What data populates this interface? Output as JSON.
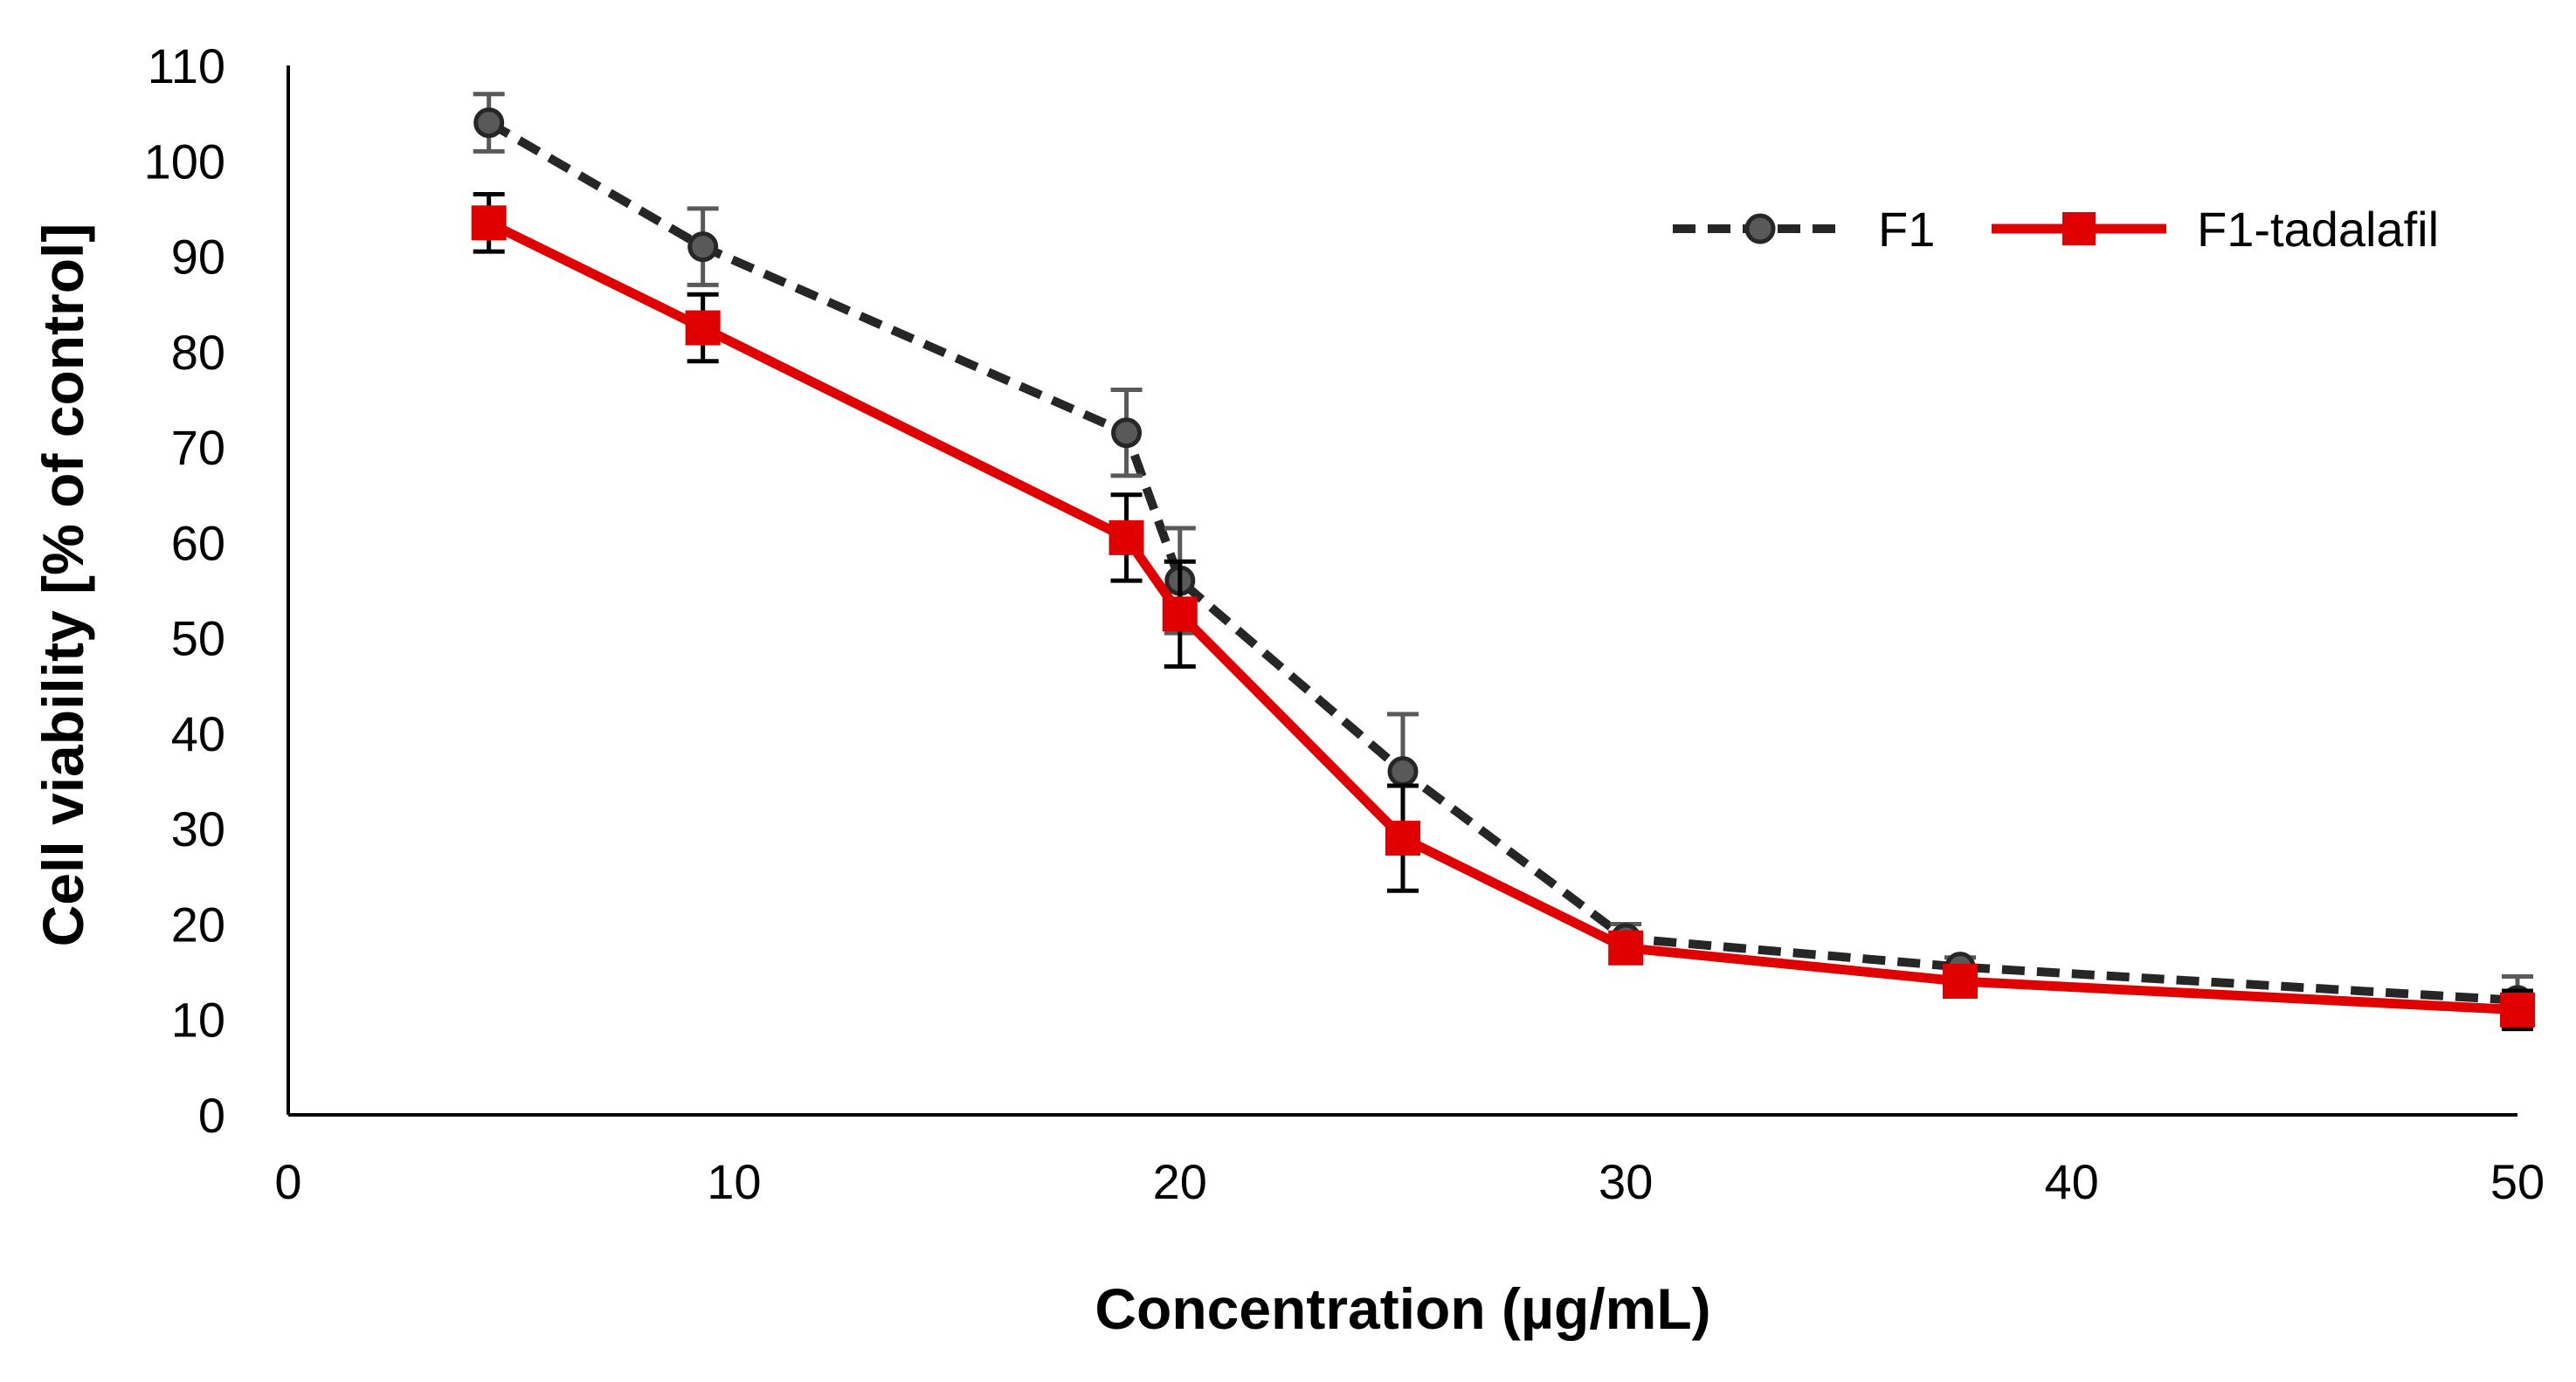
{
  "chart_data": {
    "type": "line",
    "title": "",
    "xlabel": "Concentration (µg/mL)",
    "ylabel": "Cell viability [% of control]",
    "xlim": [
      0,
      50
    ],
    "ylim": [
      0,
      110
    ],
    "xticks": [
      0,
      10,
      20,
      30,
      40,
      50
    ],
    "yticks": [
      0,
      10,
      20,
      30,
      40,
      50,
      60,
      70,
      80,
      90,
      100,
      110
    ],
    "grid": false,
    "legend_position": "top-right",
    "series": [
      {
        "name": "F1",
        "color": "#262626",
        "error_color": "#595959",
        "line_style": "dashed",
        "marker": "circle",
        "x": [
          4.5,
          9.3,
          18.8,
          20,
          25,
          30,
          37.5,
          50
        ],
        "y": [
          104,
          91,
          71.5,
          56,
          36,
          18.5,
          15.5,
          12
        ],
        "error": [
          3,
          4,
          4.5,
          5.5,
          6,
          1.5,
          1,
          2.5
        ]
      },
      {
        "name": "F1-tadalafil",
        "color": "#e00000",
        "error_color": "#000000",
        "line_style": "solid",
        "marker": "square",
        "x": [
          4.5,
          9.3,
          18.8,
          20,
          25,
          30,
          37.5,
          50
        ],
        "y": [
          93.5,
          82.5,
          60.5,
          52.5,
          29,
          17.5,
          14,
          11
        ],
        "error": [
          3,
          3.5,
          4.5,
          5.5,
          5.5,
          1,
          1,
          2
        ]
      }
    ]
  }
}
